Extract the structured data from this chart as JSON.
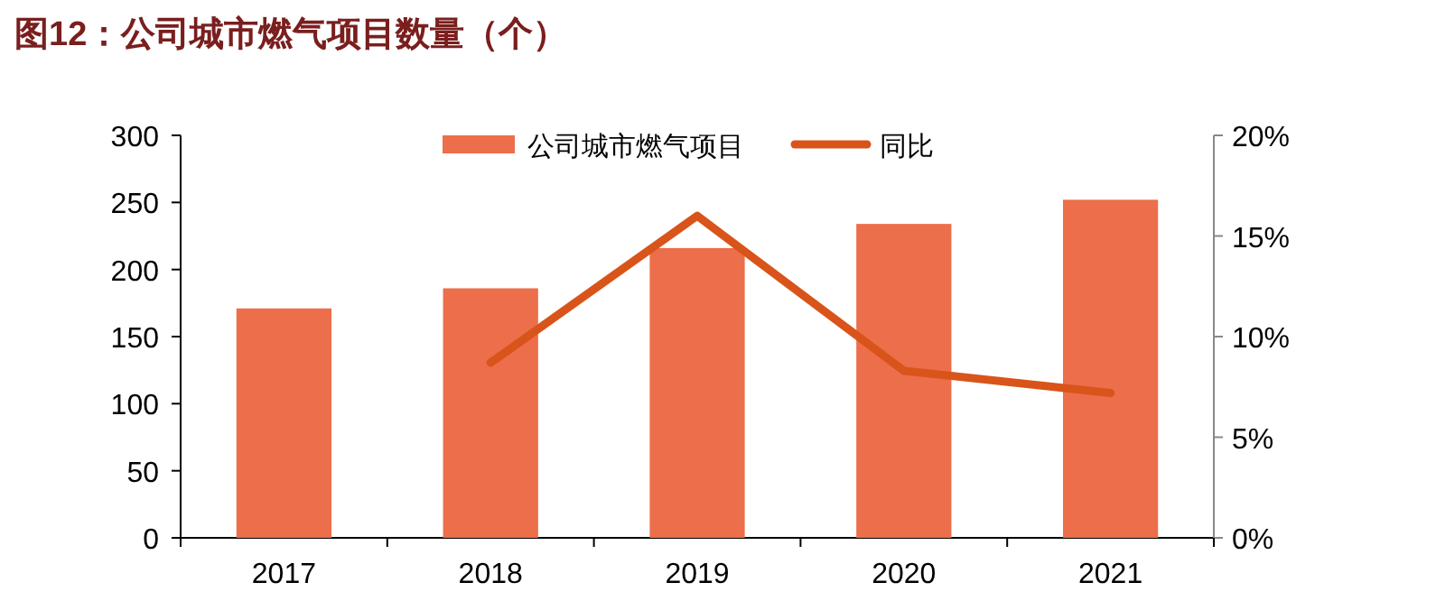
{
  "chart_data": {
    "type": "bar",
    "title": "图12：公司城市燃气项目数量（个）",
    "categories": [
      "2017",
      "2018",
      "2019",
      "2020",
      "2021"
    ],
    "series": [
      {
        "name": "公司城市燃气项目",
        "color": "#ec6e4a",
        "values": [
          171,
          186,
          216,
          234,
          252
        ]
      },
      {
        "name": "同比",
        "type": "line",
        "axis": "y2",
        "color": "#d9541a",
        "values": [
          null,
          8.7,
          16.0,
          8.3,
          7.2
        ]
      }
    ],
    "ylim": [
      0,
      300
    ],
    "yticks": [
      0,
      50,
      100,
      150,
      200,
      250,
      300
    ],
    "y2lim": [
      0,
      20
    ],
    "y2ticks": [
      {
        "value": 0,
        "label": "0%"
      },
      {
        "value": 5,
        "label": "5%"
      },
      {
        "value": 10,
        "label": "10%"
      },
      {
        "value": 15,
        "label": "15%"
      },
      {
        "value": 20,
        "label": "20%"
      }
    ],
    "legend": "top",
    "grid": false,
    "marker": "none",
    "line_style": "solid"
  }
}
